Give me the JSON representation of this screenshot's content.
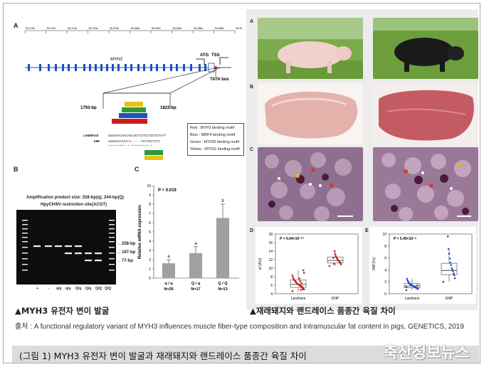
{
  "panel_labels": {
    "A_left": "A",
    "B_left": "B",
    "C_left": "C",
    "A_right": "A",
    "B_right": "B",
    "C_right": "C",
    "D": "D",
    "E": "E"
  },
  "genome": {
    "ticks": [
      "55,370k",
      "55,372k",
      "55,374k",
      "55,376k",
      "55,378k",
      "55,380k",
      "55,382k",
      "55,384k",
      "55,386k",
      "55,388k",
      "55,390k"
    ],
    "gene_name": "MYH3",
    "atg": "ATG",
    "tss": "TSS",
    "tata": "TATA box",
    "bp_left": "1793-bp",
    "bp_right": "1822-bp",
    "landrace_label": "LANDRACE",
    "knp_label": "KNP",
    "landrace_seq": "GGGGAACAACAGCAGTCCTCCTGCTGTATT",
    "knp_seq": "GGGGAACAC",
    "knp_seq_del": "ACG",
    "knp_seq_tail": "-----TCCTGCTCTC",
    "stars": "*********  *    *********  *  ",
    "legend": [
      "Red : MYF5 binding motif",
      "Blue : MRF4 binding motif",
      "Green : MYOD binding motif",
      "Yellow : MYOG binding motif"
    ]
  },
  "gel": {
    "title1": "Amplification product size: 258-bp(q), 244-bp(Q)",
    "title2": "HpyCH4IV restriction site(ACGT)",
    "bands_right": [
      "←258-bp",
      "←167-bp",
      "←77-bp"
    ],
    "lanes": [
      "+",
      "-",
      "q/q",
      "q/q",
      "Q/q",
      "Q/q",
      "Q/Q",
      "Q/Q"
    ]
  },
  "chart_data": [
    {
      "type": "bar",
      "title": "",
      "ylabel": "Relative mRNA expression",
      "annotation": "P = 0.019",
      "categories": [
        "q / q",
        "Q / q",
        "Q / Q"
      ],
      "n_labels": [
        "N=26",
        "N=17",
        "N=13"
      ],
      "values": [
        1.6,
        2.7,
        6.5
      ],
      "errors": [
        0.4,
        0.7,
        1.5
      ],
      "letters": [
        "a",
        "a",
        "b"
      ],
      "ylim": [
        0,
        10
      ],
      "yticks": [
        0,
        1,
        2,
        3,
        4,
        5,
        6,
        7,
        8,
        9,
        10
      ]
    },
    {
      "type": "scatter",
      "ylabel": "a*(AU)",
      "annotation": "P = 6.04×10⁻¹⁰",
      "categories": [
        "Landrace",
        "KNP"
      ],
      "ylim": [
        4,
        18
      ],
      "yticks": [
        4,
        6,
        8,
        10,
        12,
        14,
        16,
        18
      ],
      "box": [
        {
          "min": 4.5,
          "q1": 5.5,
          "median": 6.2,
          "q3": 7.2,
          "max": 9.5
        },
        {
          "min": 10.5,
          "q1": 11.2,
          "median": 11.8,
          "q3": 12.6,
          "max": 14
        }
      ],
      "points": [
        [
          4.6,
          5.0,
          5.2,
          5.4,
          5.5,
          5.6,
          5.8,
          5.9,
          6.0,
          6.1,
          6.2,
          6.3,
          6.4,
          6.6,
          6.8,
          7.0,
          7.2,
          7.4,
          7.8,
          8.3,
          8.9,
          9.5,
          5.1,
          5.7,
          6.5,
          4.9,
          6.9,
          7.6
        ],
        [
          10.5,
          10.9,
          11.2,
          11.4,
          11.6,
          11.8,
          12.0,
          12.2,
          12.5,
          12.8,
          13.3,
          14.0,
          11.0,
          12.4
        ]
      ]
    },
    {
      "type": "scatter",
      "ylabel": "IMF(%)",
      "annotation": "P = 5.45×10⁻⁸",
      "categories": [
        "Landrace",
        "KNP"
      ],
      "ylim": [
        0,
        10
      ],
      "yticks": [
        0,
        2,
        4,
        6,
        8,
        10
      ],
      "box": [
        {
          "min": 0.6,
          "q1": 1.0,
          "median": 1.3,
          "q3": 1.7,
          "max": 2.5
        },
        {
          "min": 2.0,
          "q1": 3.2,
          "median": 3.9,
          "q3": 5.1,
          "max": 7.5
        }
      ],
      "points": [
        [
          0.6,
          0.8,
          0.9,
          1.0,
          1.0,
          1.1,
          1.2,
          1.2,
          1.3,
          1.3,
          1.4,
          1.5,
          1.5,
          1.6,
          1.7,
          1.8,
          2.0,
          2.2,
          2.5,
          1.1,
          0.9,
          1.4
        ],
        [
          2.0,
          2.6,
          3.1,
          3.4,
          3.8,
          4.0,
          4.3,
          4.8,
          5.2,
          5.9,
          6.7,
          7.5,
          9.6
        ]
      ]
    }
  ],
  "captions": {
    "left": "▲MYH3 유전자 변이 발굴",
    "right": "▲재래돼지와 랜드레이스 품종간 육질 차이",
    "source": "출처 : A functional regulatory variant of MYH3 influences muscle fiber-type composition and intramuscular fat content in pigs, GENETICS, 2019",
    "figure_title": "(그림 1) MYH3 유전자 변이 발굴과 재래돼지와 랜드레이스 품종간 육질 차이",
    "watermark": "축산정보뉴스"
  },
  "colors": {
    "red": "#c81e1e",
    "blue": "#1f4fbf",
    "green": "#2e9a3a",
    "yellow": "#e8c21a",
    "bar": "#a0a0a0"
  }
}
